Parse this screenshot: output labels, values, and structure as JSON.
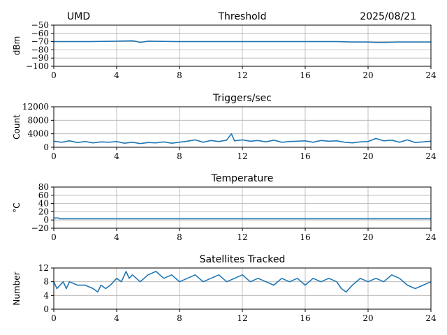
{
  "header": {
    "site": "UMD",
    "date": "2025/08/21"
  },
  "colors": {
    "series": "#1f77b4",
    "grid": "#b0b0b0",
    "axis": "#000000"
  },
  "chart_data": [
    {
      "type": "line",
      "title": "Threshold",
      "ylabel": "dBm",
      "xlim": [
        0,
        24
      ],
      "ylim": [
        -100,
        -50
      ],
      "xticks": [
        "0",
        "4",
        "8",
        "12",
        "16",
        "20",
        "24"
      ],
      "yticks": [
        "−50",
        "−60",
        "−70",
        "−80",
        "−90",
        "−100"
      ],
      "grid": true,
      "series": [
        {
          "x": [
            0,
            2,
            4,
            5,
            5.3,
            5.5,
            6,
            8,
            10,
            12,
            14,
            16,
            18,
            19,
            20,
            20.5,
            21,
            22,
            24
          ],
          "y": [
            -70,
            -70,
            -69.5,
            -69,
            -70,
            -71,
            -69.5,
            -70,
            -70,
            -70,
            -70,
            -70,
            -70,
            -70.5,
            -70.5,
            -71,
            -71,
            -70.5,
            -70.5
          ]
        }
      ]
    },
    {
      "type": "line",
      "title": "Triggers/sec",
      "ylabel": "Count",
      "xlim": [
        0,
        24
      ],
      "ylim": [
        0,
        12000
      ],
      "xticks": [
        "0",
        "4",
        "8",
        "12",
        "16",
        "20",
        "24"
      ],
      "yticks": [
        "12000",
        "8000",
        "4000",
        "0"
      ],
      "grid": true,
      "series": [
        {
          "x": [
            0,
            0.5,
            1,
            1.5,
            2,
            2.5,
            3,
            3.5,
            4,
            4.5,
            5,
            5.5,
            6,
            6.5,
            7,
            7.5,
            8,
            8.5,
            9,
            9.5,
            10,
            10.5,
            11,
            11.3,
            11.5,
            12,
            12.5,
            13,
            13.5,
            14,
            14.5,
            15,
            15.5,
            16,
            16.5,
            17,
            17.5,
            18,
            18.5,
            19,
            19.5,
            20,
            20.5,
            21,
            21.5,
            22,
            22.5,
            23,
            23.5,
            24
          ],
          "y": [
            1800,
            1500,
            1900,
            1400,
            1700,
            1300,
            1600,
            1500,
            1700,
            1200,
            1500,
            1100,
            1400,
            1300,
            1600,
            1200,
            1500,
            1800,
            2200,
            1500,
            2000,
            1700,
            2100,
            4000,
            1900,
            2200,
            1800,
            2000,
            1600,
            2100,
            1500,
            1700,
            1800,
            1900,
            1500,
            2000,
            1800,
            1900,
            1500,
            1300,
            1600,
            1700,
            2600,
            1900,
            2100,
            1500,
            2200,
            1400,
            1600,
            1800
          ]
        }
      ]
    },
    {
      "type": "line",
      "title": "Temperature",
      "ylabel": "°C",
      "xlim": [
        0,
        24
      ],
      "ylim": [
        -20,
        80
      ],
      "xticks": [
        "0",
        "4",
        "8",
        "12",
        "16",
        "20",
        "24"
      ],
      "yticks": [
        "80",
        "60",
        "40",
        "20",
        "0",
        "−20"
      ],
      "grid": true,
      "series": [
        {
          "x": [
            0,
            0.3,
            0.35,
            4,
            8,
            12,
            16,
            20,
            24
          ],
          "y": [
            5,
            5,
            3,
            3,
            3,
            3,
            3,
            3,
            3
          ]
        }
      ]
    },
    {
      "type": "line",
      "title": "Satellites Tracked",
      "ylabel": "Number",
      "xlim": [
        0,
        24
      ],
      "ylim": [
        0,
        12
      ],
      "xticks": [
        "0",
        "4",
        "8",
        "12",
        "16",
        "20",
        "24"
      ],
      "yticks": [
        "12",
        "8",
        "4",
        "0"
      ],
      "grid": true,
      "series": [
        {
          "x": [
            0,
            0.2,
            0.4,
            0.6,
            0.8,
            1,
            1.5,
            2,
            2.5,
            2.8,
            3,
            3.3,
            3.6,
            4,
            4.3,
            4.6,
            4.8,
            5,
            5.5,
            6,
            6.5,
            7,
            7.5,
            8,
            8.5,
            9,
            9.5,
            10,
            10.5,
            11,
            11.5,
            12,
            12.5,
            13,
            13.5,
            14,
            14.5,
            15,
            15.5,
            16,
            16.5,
            17,
            17.5,
            18,
            18.3,
            18.6,
            19,
            19.5,
            20,
            20.5,
            21,
            21.5,
            22,
            22.5,
            23,
            23.5,
            24
          ],
          "y": [
            8,
            6,
            7,
            8,
            6,
            8,
            7,
            7,
            6,
            5,
            7,
            6,
            7,
            9,
            8,
            11,
            9,
            10,
            8,
            10,
            11,
            9,
            10,
            8,
            9,
            10,
            8,
            9,
            10,
            8,
            9,
            10,
            8,
            9,
            8,
            7,
            9,
            8,
            9,
            7,
            9,
            8,
            9,
            8,
            6,
            5,
            7,
            9,
            8,
            9,
            8,
            10,
            9,
            7,
            6,
            7,
            8
          ]
        }
      ]
    }
  ]
}
